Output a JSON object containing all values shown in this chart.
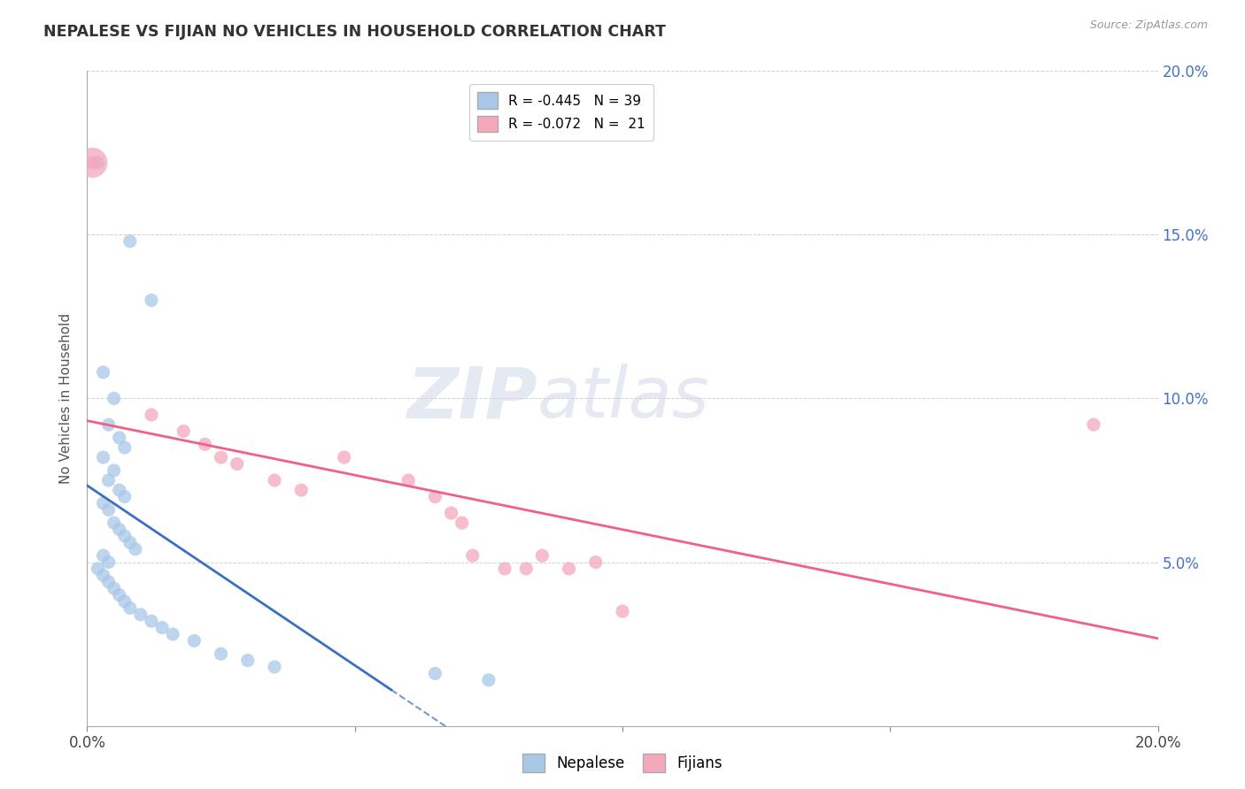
{
  "title": "NEPALESE VS FIJIAN NO VEHICLES IN HOUSEHOLD CORRELATION CHART",
  "source": "Source: ZipAtlas.com",
  "ylabel": "No Vehicles in Household",
  "xlim": [
    0.0,
    0.2
  ],
  "ylim": [
    0.0,
    0.2
  ],
  "watermark_zip": "ZIP",
  "watermark_atlas": "atlas",
  "legend_line1": "R = -0.445   N = 39",
  "legend_line2": "R = -0.072   N =  21",
  "nepalese_color": "#a8c8e8",
  "fijian_color": "#f4a8bc",
  "nepalese_line_color": "#3a6fc4",
  "fijian_line_color": "#f06088",
  "nepalese_scatter": [
    [
      0.002,
      0.172
    ],
    [
      0.008,
      0.148
    ],
    [
      0.012,
      0.13
    ],
    [
      0.003,
      0.108
    ],
    [
      0.005,
      0.1
    ],
    [
      0.004,
      0.092
    ],
    [
      0.006,
      0.088
    ],
    [
      0.007,
      0.085
    ],
    [
      0.003,
      0.082
    ],
    [
      0.005,
      0.078
    ],
    [
      0.004,
      0.075
    ],
    [
      0.006,
      0.072
    ],
    [
      0.007,
      0.07
    ],
    [
      0.003,
      0.068
    ],
    [
      0.004,
      0.066
    ],
    [
      0.005,
      0.062
    ],
    [
      0.006,
      0.06
    ],
    [
      0.007,
      0.058
    ],
    [
      0.008,
      0.056
    ],
    [
      0.009,
      0.054
    ],
    [
      0.003,
      0.052
    ],
    [
      0.004,
      0.05
    ],
    [
      0.002,
      0.048
    ],
    [
      0.003,
      0.046
    ],
    [
      0.004,
      0.044
    ],
    [
      0.005,
      0.042
    ],
    [
      0.006,
      0.04
    ],
    [
      0.007,
      0.038
    ],
    [
      0.008,
      0.036
    ],
    [
      0.01,
      0.034
    ],
    [
      0.012,
      0.032
    ],
    [
      0.014,
      0.03
    ],
    [
      0.016,
      0.028
    ],
    [
      0.02,
      0.026
    ],
    [
      0.025,
      0.022
    ],
    [
      0.03,
      0.02
    ],
    [
      0.035,
      0.018
    ],
    [
      0.065,
      0.016
    ],
    [
      0.075,
      0.014
    ]
  ],
  "fijian_scatter": [
    [
      0.001,
      0.172
    ],
    [
      0.012,
      0.095
    ],
    [
      0.018,
      0.09
    ],
    [
      0.022,
      0.086
    ],
    [
      0.025,
      0.082
    ],
    [
      0.028,
      0.08
    ],
    [
      0.035,
      0.075
    ],
    [
      0.04,
      0.072
    ],
    [
      0.048,
      0.082
    ],
    [
      0.06,
      0.075
    ],
    [
      0.065,
      0.07
    ],
    [
      0.068,
      0.065
    ],
    [
      0.07,
      0.062
    ],
    [
      0.072,
      0.052
    ],
    [
      0.078,
      0.048
    ],
    [
      0.082,
      0.048
    ],
    [
      0.085,
      0.052
    ],
    [
      0.09,
      0.048
    ],
    [
      0.095,
      0.05
    ],
    [
      0.1,
      0.035
    ],
    [
      0.188,
      0.092
    ]
  ],
  "xtick_positions": [
    0.0,
    0.05,
    0.1,
    0.15,
    0.2
  ],
  "xtick_labels_bottom": [
    "0.0%",
    "",
    "",
    "",
    "20.0%"
  ],
  "ytick_positions": [
    0.0,
    0.05,
    0.1,
    0.15,
    0.2
  ],
  "ytick_labels_right": [
    "",
    "5.0%",
    "10.0%",
    "15.0%",
    "20.0%"
  ]
}
